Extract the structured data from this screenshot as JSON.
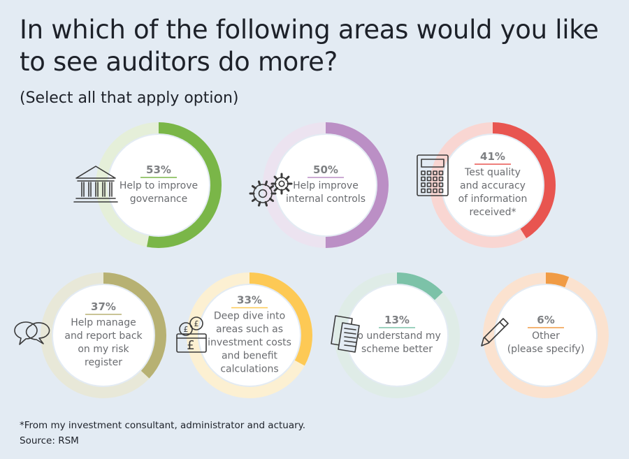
{
  "header": {
    "title": "In which of the following areas would you like to see auditors do more?",
    "subtitle": "(Select all that apply option)"
  },
  "chart_data": {
    "type": "donut",
    "unit": "%",
    "items": [
      {
        "value": 53,
        "pct_label": "53%",
        "label": [
          "Help to improve",
          "governance"
        ],
        "color": "#7ab648",
        "track": "#e5efd9",
        "icon": "bank-building-icon"
      },
      {
        "value": 50,
        "pct_label": "50%",
        "label": [
          "Help improve",
          "internal controls"
        ],
        "color": "#bb8fc5",
        "track": "#ece3f0",
        "icon": "gears-icon"
      },
      {
        "value": 41,
        "pct_label": "41%",
        "label": [
          "Test quality",
          "and accuracy",
          "of information",
          "received*"
        ],
        "color": "#e85550",
        "track": "#f9d6d2",
        "icon": "calculator-icon"
      },
      {
        "value": 37,
        "pct_label": "37%",
        "label": [
          "Help manage",
          "and report back",
          "on my risk",
          "register"
        ],
        "color": "#b7b173",
        "track": "#e8e8d8",
        "icon": "speech-bubbles-icon"
      },
      {
        "value": 33,
        "pct_label": "33%",
        "label": [
          "Deep dive into",
          "areas such as",
          "investment costs",
          "and benefit",
          "calculations"
        ],
        "color": "#fdc955",
        "track": "#fcf0d2",
        "icon": "pound-coins-wallet-icon"
      },
      {
        "value": 13,
        "pct_label": "13%",
        "label": [
          "To understand my",
          "scheme better"
        ],
        "color": "#7cc2a8",
        "track": "#dfece7",
        "icon": "documents-icon"
      },
      {
        "value": 6,
        "pct_label": "6%",
        "label": [
          "Other",
          "(please specify)"
        ],
        "color": "#f09b45",
        "track": "#fbe2cf",
        "icon": "pencil-icon"
      }
    ]
  },
  "footer": {
    "footnote": "*From my investment consultant, administrator and actuary.",
    "source": "Source: RSM"
  }
}
